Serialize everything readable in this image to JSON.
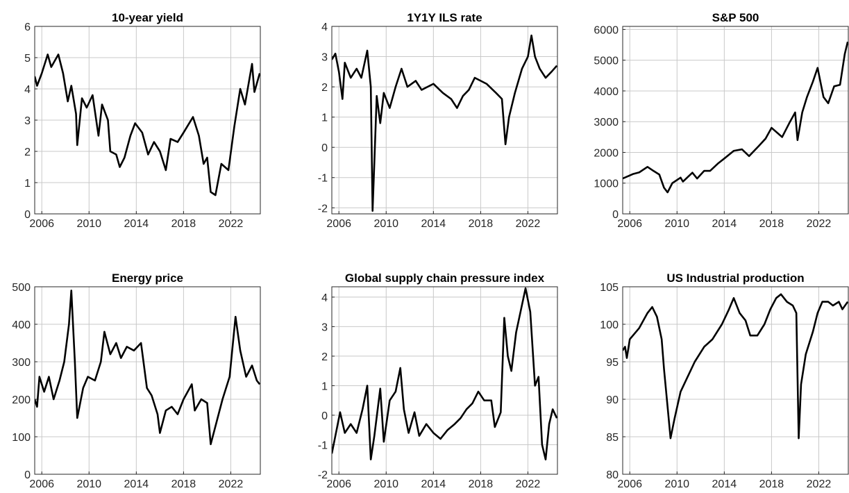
{
  "chart_data": [
    {
      "type": "line",
      "title": "10-year yield",
      "color": "#000000",
      "grid": true,
      "xlim": [
        2005.4,
        2024.5
      ],
      "xticks": [
        2006,
        2010,
        2014,
        2018,
        2022
      ],
      "ylim": [
        0,
        6
      ],
      "yticks": [
        0,
        1,
        2,
        3,
        4,
        5,
        6
      ],
      "x": [
        2005.4,
        2005.6,
        2006.0,
        2006.5,
        2006.8,
        2007.4,
        2007.8,
        2008.2,
        2008.5,
        2008.9,
        2009.0,
        2009.4,
        2009.8,
        2010.3,
        2010.8,
        2011.1,
        2011.6,
        2011.8,
        2012.3,
        2012.6,
        2013.0,
        2013.5,
        2013.9,
        2014.5,
        2015.0,
        2015.5,
        2016.0,
        2016.5,
        2016.9,
        2017.5,
        2018.0,
        2018.8,
        2019.3,
        2019.7,
        2020.0,
        2020.3,
        2020.7,
        2021.2,
        2021.8,
        2022.3,
        2022.8,
        2023.2,
        2023.8,
        2024.0,
        2024.3,
        2024.45
      ],
      "values": [
        4.4,
        4.1,
        4.5,
        5.1,
        4.7,
        5.1,
        4.5,
        3.6,
        4.1,
        3.2,
        2.2,
        3.7,
        3.4,
        3.8,
        2.5,
        3.5,
        3.0,
        2.0,
        1.9,
        1.5,
        1.8,
        2.5,
        2.9,
        2.6,
        1.9,
        2.3,
        2.0,
        1.4,
        2.4,
        2.3,
        2.6,
        3.1,
        2.5,
        1.6,
        1.8,
        0.7,
        0.6,
        1.6,
        1.4,
        2.8,
        4.0,
        3.5,
        4.8,
        3.9,
        4.3,
        4.5
      ]
    },
    {
      "type": "line",
      "title": "1Y1Y ILS rate",
      "color": "#000000",
      "grid": true,
      "xlim": [
        2005.4,
        2024.5
      ],
      "xticks": [
        2006,
        2010,
        2014,
        2018,
        2022
      ],
      "ylim": [
        -2.2,
        4
      ],
      "yticks": [
        -2,
        -1,
        0,
        1,
        2,
        3,
        4
      ],
      "x": [
        2005.4,
        2005.7,
        2006.0,
        2006.3,
        2006.5,
        2007.0,
        2007.5,
        2007.9,
        2008.4,
        2008.7,
        2008.85,
        2009.0,
        2009.2,
        2009.5,
        2009.8,
        2010.3,
        2010.8,
        2011.3,
        2011.8,
        2012.5,
        2013.0,
        2014.0,
        2014.8,
        2015.5,
        2016.0,
        2016.5,
        2017.0,
        2017.5,
        2018.5,
        2019.3,
        2019.8,
        2020.1,
        2020.4,
        2020.9,
        2021.5,
        2022.0,
        2022.3,
        2022.6,
        2023.0,
        2023.5,
        2024.0,
        2024.45
      ],
      "values": [
        2.9,
        3.1,
        2.5,
        1.6,
        2.8,
        2.3,
        2.6,
        2.3,
        3.2,
        2.0,
        -2.1,
        -0.5,
        1.7,
        0.8,
        1.8,
        1.3,
        2.0,
        2.6,
        2.0,
        2.2,
        1.9,
        2.1,
        1.8,
        1.6,
        1.3,
        1.7,
        1.9,
        2.3,
        2.1,
        1.8,
        1.6,
        0.1,
        1.0,
        1.8,
        2.6,
        3.0,
        3.7,
        3.0,
        2.6,
        2.3,
        2.5,
        2.7
      ]
    },
    {
      "type": "line",
      "title": "S&P 500",
      "color": "#000000",
      "grid": true,
      "xlim": [
        2005.4,
        2024.5
      ],
      "xticks": [
        2006,
        2010,
        2014,
        2018,
        2022
      ],
      "ylim": [
        0,
        6100
      ],
      "yticks": [
        0,
        1000,
        2000,
        3000,
        4000,
        5000,
        6000
      ],
      "x": [
        2005.4,
        2006.3,
        2006.8,
        2007.5,
        2008.0,
        2008.5,
        2008.9,
        2009.2,
        2009.6,
        2010.3,
        2010.5,
        2011.3,
        2011.7,
        2012.3,
        2012.8,
        2013.5,
        2014.0,
        2014.8,
        2015.5,
        2016.1,
        2016.9,
        2017.5,
        2018.0,
        2018.9,
        2019.5,
        2020.0,
        2020.2,
        2020.6,
        2021.0,
        2021.5,
        2021.9,
        2022.4,
        2022.8,
        2023.3,
        2023.8,
        2024.2,
        2024.45
      ],
      "values": [
        1150,
        1300,
        1350,
        1530,
        1400,
        1280,
        850,
        700,
        1000,
        1180,
        1050,
        1340,
        1150,
        1400,
        1400,
        1650,
        1800,
        2050,
        2100,
        1880,
        2200,
        2450,
        2800,
        2500,
        2950,
        3300,
        2400,
        3300,
        3800,
        4300,
        4750,
        3800,
        3600,
        4150,
        4200,
        5200,
        5600
      ]
    },
    {
      "type": "line",
      "title": "Energy price",
      "color": "#000000",
      "grid": true,
      "xlim": [
        2005.4,
        2024.5
      ],
      "xticks": [
        2006,
        2010,
        2014,
        2018,
        2022
      ],
      "ylim": [
        0,
        500
      ],
      "yticks": [
        0,
        100,
        200,
        300,
        400,
        500
      ],
      "x": [
        2005.4,
        2005.6,
        2005.8,
        2006.2,
        2006.6,
        2007.0,
        2007.5,
        2007.9,
        2008.3,
        2008.5,
        2008.8,
        2009.0,
        2009.5,
        2009.9,
        2010.5,
        2011.0,
        2011.3,
        2011.8,
        2012.3,
        2012.7,
        2013.2,
        2013.8,
        2014.4,
        2014.9,
        2015.3,
        2015.8,
        2016.0,
        2016.5,
        2017.0,
        2017.5,
        2018.0,
        2018.7,
        2018.95,
        2019.5,
        2020.0,
        2020.3,
        2020.8,
        2021.3,
        2021.9,
        2022.4,
        2022.8,
        2023.3,
        2023.8,
        2024.2,
        2024.45
      ],
      "values": [
        200,
        180,
        260,
        220,
        260,
        200,
        250,
        300,
        400,
        490,
        300,
        150,
        230,
        260,
        250,
        300,
        380,
        320,
        350,
        310,
        340,
        330,
        350,
        230,
        210,
        160,
        110,
        170,
        180,
        160,
        200,
        240,
        170,
        200,
        190,
        80,
        140,
        200,
        260,
        420,
        330,
        260,
        290,
        250,
        240
      ]
    },
    {
      "type": "line",
      "title": "Global supply chain pressure index",
      "color": "#000000",
      "grid": true,
      "xlim": [
        2005.4,
        2024.5
      ],
      "xticks": [
        2006,
        2010,
        2014,
        2018,
        2022
      ],
      "ylim": [
        -2,
        4.35
      ],
      "yticks": [
        -2,
        -1,
        0,
        1,
        2,
        3,
        4
      ],
      "x": [
        2005.4,
        2005.8,
        2006.1,
        2006.5,
        2007.0,
        2007.5,
        2008.0,
        2008.4,
        2008.7,
        2009.0,
        2009.5,
        2009.8,
        2010.3,
        2010.8,
        2011.2,
        2011.5,
        2011.9,
        2012.4,
        2012.8,
        2013.4,
        2014.0,
        2014.6,
        2015.2,
        2015.8,
        2016.3,
        2016.8,
        2017.3,
        2017.8,
        2018.3,
        2018.9,
        2019.2,
        2019.7,
        2020.0,
        2020.3,
        2020.6,
        2021.0,
        2021.8,
        2022.2,
        2022.6,
        2022.9,
        2023.2,
        2023.5,
        2023.8,
        2024.1,
        2024.45
      ],
      "values": [
        -1.3,
        -0.5,
        0.1,
        -0.6,
        -0.3,
        -0.6,
        0.2,
        1.0,
        -1.5,
        -0.7,
        0.9,
        -0.9,
        0.5,
        0.8,
        1.6,
        0.2,
        -0.6,
        0.1,
        -0.7,
        -0.3,
        -0.6,
        -0.8,
        -0.5,
        -0.3,
        -0.1,
        0.2,
        0.4,
        0.8,
        0.5,
        0.5,
        -0.4,
        0.1,
        3.3,
        2.0,
        1.5,
        2.8,
        4.3,
        3.5,
        1.0,
        1.3,
        -1.0,
        -1.5,
        -0.3,
        0.2,
        -0.1
      ]
    },
    {
      "type": "line",
      "title": "US Industrial production",
      "color": "#000000",
      "grid": true,
      "xlim": [
        2005.4,
        2024.5
      ],
      "xticks": [
        2006,
        2010,
        2014,
        2018,
        2022
      ],
      "ylim": [
        80,
        105
      ],
      "yticks": [
        80,
        85,
        90,
        95,
        100,
        105
      ],
      "x": [
        2005.4,
        2005.6,
        2005.75,
        2006.0,
        2006.8,
        2007.5,
        2007.9,
        2008.3,
        2008.7,
        2008.9,
        2009.2,
        2009.45,
        2009.8,
        2010.3,
        2010.9,
        2011.5,
        2012.3,
        2013.0,
        2013.8,
        2014.4,
        2014.8,
        2015.3,
        2015.8,
        2016.2,
        2016.8,
        2017.4,
        2017.9,
        2018.4,
        2018.8,
        2019.3,
        2019.8,
        2020.1,
        2020.3,
        2020.5,
        2020.9,
        2021.5,
        2021.9,
        2022.3,
        2022.8,
        2023.2,
        2023.7,
        2024.0,
        2024.45
      ],
      "values": [
        96.5,
        97,
        95.5,
        98,
        99.5,
        101.5,
        102.3,
        101,
        98,
        94,
        89,
        84.8,
        87.5,
        91,
        93,
        95,
        97,
        98,
        100,
        102,
        103.5,
        101.5,
        100.5,
        98.5,
        98.5,
        100,
        102,
        103.5,
        104,
        103,
        102.5,
        101.5,
        84.8,
        92,
        96,
        99,
        101.5,
        103,
        103,
        102.5,
        103,
        102,
        103
      ]
    }
  ]
}
